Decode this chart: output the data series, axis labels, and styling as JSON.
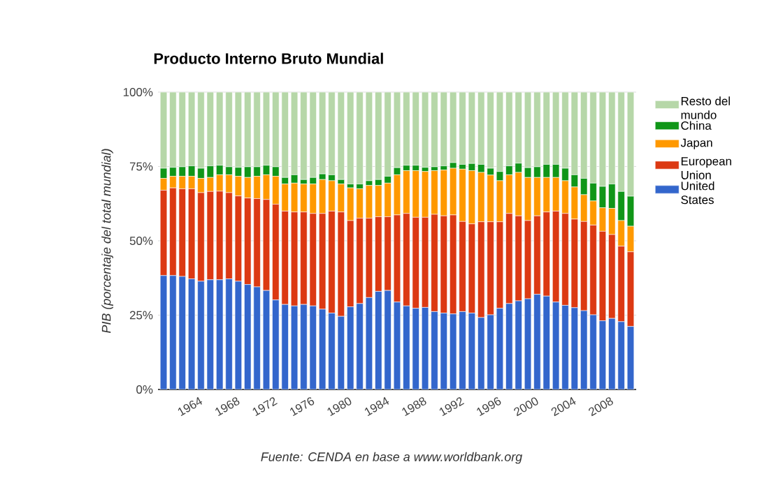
{
  "chart_data": {
    "type": "bar",
    "stacked": true,
    "title": "Producto Interno Bruto Mundial",
    "ylabel": "PIB (porcentaje del total mundial)",
    "annotations": [
      "Fuente: CENDA en base a www.worldbank.org"
    ],
    "x": [
      1960,
      1961,
      1962,
      1963,
      1964,
      1965,
      1966,
      1967,
      1968,
      1969,
      1970,
      1971,
      1972,
      1973,
      1974,
      1975,
      1976,
      1977,
      1978,
      1979,
      1980,
      1981,
      1982,
      1983,
      1984,
      1985,
      1986,
      1987,
      1988,
      1989,
      1990,
      1991,
      1992,
      1993,
      1994,
      1995,
      1996,
      1997,
      1998,
      1999,
      2000,
      2001,
      2002,
      2003,
      2004,
      2005,
      2006,
      2007,
      2008,
      2009,
      2010
    ],
    "xlim": [
      1959.4,
      2010.6
    ],
    "xticks": [
      1964,
      1968,
      1972,
      1976,
      1980,
      1984,
      1988,
      1992,
      1996,
      2000,
      2004,
      2008
    ],
    "ylim": [
      0,
      100
    ],
    "yticks": [
      {
        "value": 0,
        "label": "0%"
      },
      {
        "value": 25,
        "label": "25%"
      },
      {
        "value": 50,
        "label": "50%"
      },
      {
        "value": 75,
        "label": "75%"
      },
      {
        "value": 100,
        "label": "100%"
      }
    ],
    "grid": "y",
    "legend": "right",
    "series": [
      {
        "name": "United States",
        "color": "#3366cc",
        "values": [
          38.3,
          38.3,
          38.0,
          37.2,
          36.4,
          36.9,
          36.9,
          37.2,
          36.4,
          35.3,
          34.5,
          33.3,
          30.1,
          28.6,
          28.1,
          28.6,
          28.1,
          27.0,
          25.7,
          24.6,
          27.8,
          28.9,
          30.9,
          33.0,
          33.3,
          29.4,
          28.1,
          27.3,
          27.6,
          26.2,
          25.7,
          25.4,
          26.2,
          25.7,
          24.2,
          25.1,
          27.3,
          28.9,
          29.8,
          30.5,
          32.0,
          31.4,
          29.4,
          28.3,
          27.5,
          26.5,
          25.1,
          23.1,
          23.9,
          22.8,
          21.2
        ]
      },
      {
        "name": "European Union",
        "color": "#dc3912",
        "values": [
          28.7,
          29.5,
          29.5,
          30.3,
          29.8,
          29.7,
          29.8,
          29.0,
          28.7,
          29.1,
          29.7,
          30.6,
          32.2,
          31.4,
          31.6,
          31.1,
          31.1,
          32.2,
          34.3,
          35.1,
          29.0,
          28.7,
          26.7,
          25.1,
          24.8,
          29.3,
          31.1,
          30.6,
          30.3,
          32.7,
          32.7,
          33.3,
          30.3,
          30.0,
          32.2,
          31.3,
          29.1,
          30.3,
          28.6,
          26.3,
          26.4,
          28.3,
          30.6,
          30.9,
          29.8,
          30.0,
          30.2,
          30.1,
          28.2,
          25.4,
          25.1
        ]
      },
      {
        "name": "Japan",
        "color": "#ff9900",
        "values": [
          4.0,
          3.9,
          4.2,
          4.2,
          4.8,
          4.7,
          5.5,
          6.0,
          6.6,
          6.9,
          7.5,
          8.3,
          9.4,
          9.1,
          9.7,
          9.4,
          9.9,
          11.4,
          10.2,
          9.4,
          11.0,
          9.9,
          11.0,
          10.5,
          11.3,
          13.5,
          14.4,
          15.7,
          15.4,
          14.7,
          15.4,
          15.7,
          17.6,
          17.9,
          16.6,
          15.7,
          13.8,
          13.0,
          14.6,
          14.5,
          12.9,
          11.6,
          11.3,
          11.0,
          10.8,
          9.0,
          8.1,
          7.9,
          8.8,
          8.6,
          8.6
        ]
      },
      {
        "name": "China",
        "color": "#109618",
        "values": [
          3.4,
          3.0,
          3.2,
          3.5,
          3.4,
          3.9,
          3.2,
          2.7,
          3.0,
          3.6,
          3.2,
          3.2,
          3.2,
          2.2,
          2.8,
          1.5,
          2.2,
          1.9,
          2.0,
          1.5,
          1.3,
          1.6,
          1.6,
          2.0,
          2.3,
          2.4,
          1.8,
          1.8,
          1.4,
          1.3,
          1.4,
          1.9,
          1.6,
          2.4,
          2.7,
          2.3,
          3.1,
          3.0,
          3.1,
          3.3,
          3.6,
          4.4,
          4.4,
          4.2,
          4.1,
          5.5,
          6.0,
          7.2,
          8.2,
          9.8,
          10.1
        ]
      },
      {
        "name": "Resto del mundo",
        "color": "#b6d7a8",
        "values": [
          25.6,
          25.3,
          25.1,
          24.8,
          25.6,
          24.8,
          24.6,
          25.1,
          25.3,
          25.1,
          25.1,
          24.6,
          25.1,
          28.7,
          27.8,
          29.4,
          28.7,
          27.5,
          27.8,
          29.4,
          30.9,
          30.9,
          29.8,
          29.4,
          28.3,
          25.4,
          24.6,
          24.6,
          25.3,
          25.1,
          24.8,
          23.7,
          24.3,
          24.0,
          24.3,
          25.6,
          26.7,
          24.8,
          23.9,
          25.4,
          25.1,
          24.3,
          24.3,
          25.6,
          27.8,
          29.0,
          30.6,
          31.7,
          30.9,
          33.4,
          35.0
        ]
      }
    ]
  }
}
